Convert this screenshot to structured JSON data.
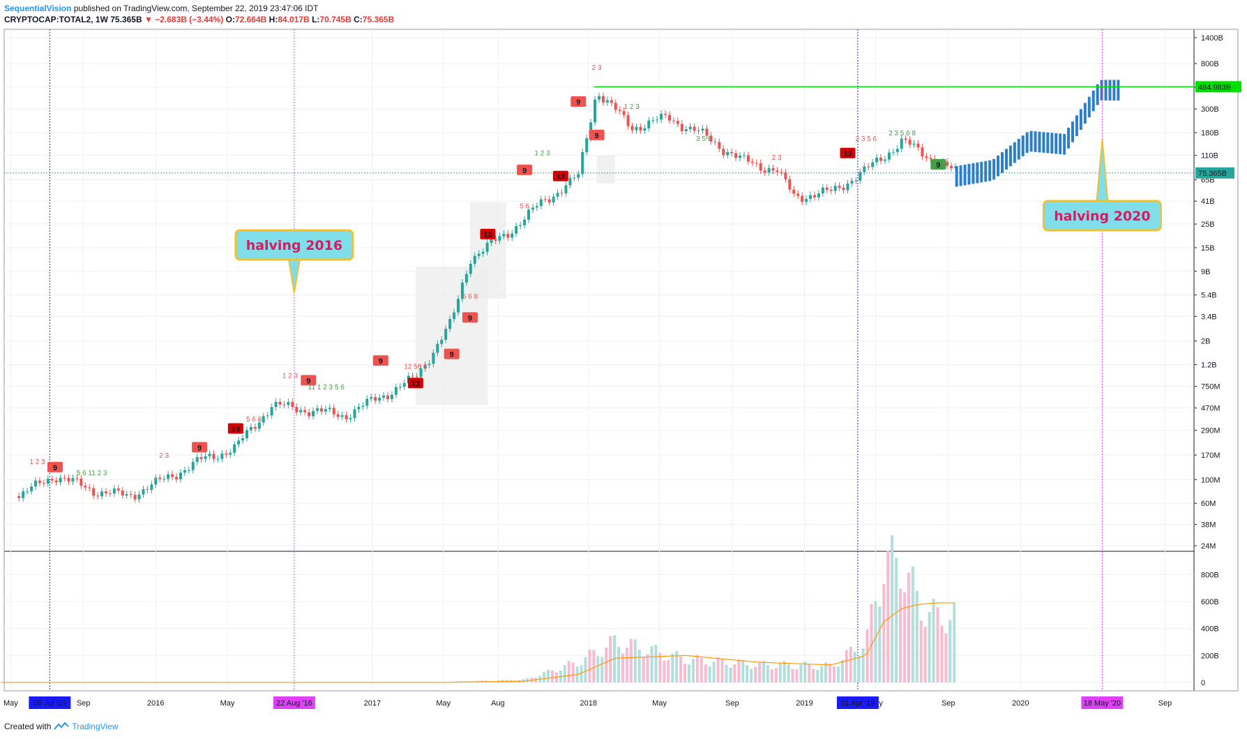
{
  "header": {
    "author": "SequentialVision",
    "published": "published on TradingView.com, September 22, 2019 23:47:06 IDT",
    "symbol": "CRYPTOCAP:TOTAL2, 1W",
    "last": "75.365B",
    "change_arrow": "▼",
    "change": "−2.683B (−3.44%)",
    "open_label": "O:",
    "open": "72.664B",
    "high_label": "H:",
    "high": "84.017B",
    "low_label": "L:",
    "low": "70.745B",
    "close_label": "C:",
    "close": "75.365B"
  },
  "footer": {
    "created_with": "Created with",
    "brand": "TradingView"
  },
  "colors": {
    "up": "#26a69a",
    "down": "#ef5350",
    "projection": "#2c7ec9",
    "resistance": "#00e000",
    "halving": "#e040fb",
    "vline_blue": "#3f51b5",
    "volume_up": "#b2dfdb",
    "volume_down": "#f8bbd0",
    "volume_ma": "#ff9800",
    "bubble_fill": "#80deea",
    "bubble_border": "#f5c02e"
  },
  "chart_data": [
    {
      "type": "line",
      "subtype": "candlestick-log",
      "symbol": "CRYPTOCAP:TOTAL2",
      "interval": "1W",
      "y_scale": "log",
      "ylim": [
        "24M",
        "1400B"
      ],
      "y_tick_labels": [
        "1400B",
        "800B",
        "480B",
        "300B",
        "180B",
        "110B",
        "65B",
        "41B",
        "25B",
        "15B",
        "9B",
        "5.4B",
        "3.4B",
        "2B",
        "1.2B",
        "750M",
        "470M",
        "290M",
        "170M",
        "100M",
        "60M",
        "38M",
        "24M"
      ],
      "x_tick_labels": [
        "May",
        "06 Jul '15",
        "Sep",
        "2016",
        "May",
        "22 Aug '16",
        "2017",
        "May",
        "Aug",
        "2018",
        "May",
        "Sep",
        "2019",
        "01 Apr '19",
        "May",
        "Sep",
        "2020",
        "18 May '20",
        "Sep"
      ],
      "x_range": [
        "2015-05",
        "2020-09"
      ],
      "series": [
        {
          "x": [
            "2015-05",
            "2015-07",
            "2015-09",
            "2015-11",
            "2016-01",
            "2016-03",
            "2016-05",
            "2016-07",
            "2016-09",
            "2016-11",
            "2017-01",
            "2017-03",
            "2017-05",
            "2017-06",
            "2017-08",
            "2017-10",
            "2017-12",
            "2018-01",
            "2018-03",
            "2018-05",
            "2018-07",
            "2018-09",
            "2018-11",
            "2018-12",
            "2019-02",
            "2019-04",
            "2019-06",
            "2019-08",
            "2019-09"
          ],
          "y": [
            0.07,
            0.11,
            0.08,
            0.07,
            0.1,
            0.15,
            0.2,
            0.5,
            0.45,
            0.4,
            0.6,
            0.9,
            3,
            12,
            20,
            40,
            70,
            450,
            200,
            250,
            170,
            100,
            80,
            45,
            50,
            80,
            150,
            95,
            75.365
          ]
        },
        {
          "name": "projection",
          "x": [
            "2019-09",
            "2019-11",
            "2020-01",
            "2020-03",
            "2020-05",
            "2020-06"
          ],
          "y": [
            70,
            80,
            150,
            140,
            450,
            450
          ]
        }
      ],
      "horizontal_line": {
        "label": "484.983B",
        "value": 484.983
      },
      "last_price_label": "75.365B",
      "last_price": 75.365,
      "annotations": [
        {
          "text": "halving 2016",
          "x": "2016-08-22"
        },
        {
          "text": "halving 2020",
          "x": "2020-05-18"
        }
      ],
      "vertical_markers": [
        "06 Jul '15",
        "22 Aug '16",
        "01 Apr '19",
        "18 May '20"
      ],
      "td_labels": [
        "9",
        "9",
        "13",
        "9",
        "9",
        "13",
        "9",
        "9",
        "13",
        "9",
        "13",
        "9",
        "9",
        "13",
        "9"
      ],
      "grid": true
    },
    {
      "type": "bar",
      "name": "volume",
      "y_tick_labels": [
        "800B",
        "600B",
        "400B",
        "200B",
        "0"
      ],
      "ylim": [
        0,
        900
      ],
      "x": [
        "2017-05",
        "2017-09",
        "2017-12",
        "2018-02",
        "2018-06",
        "2018-10",
        "2019-02",
        "2019-04",
        "2019-05",
        "2019-06",
        "2019-07",
        "2019-08",
        "2019-09"
      ],
      "values": [
        5,
        20,
        150,
        300,
        170,
        130,
        120,
        300,
        870,
        880,
        560,
        480,
        490
      ],
      "ma": [
        2,
        10,
        60,
        180,
        200,
        150,
        130,
        200,
        450,
        550,
        580,
        590,
        590
      ]
    }
  ]
}
